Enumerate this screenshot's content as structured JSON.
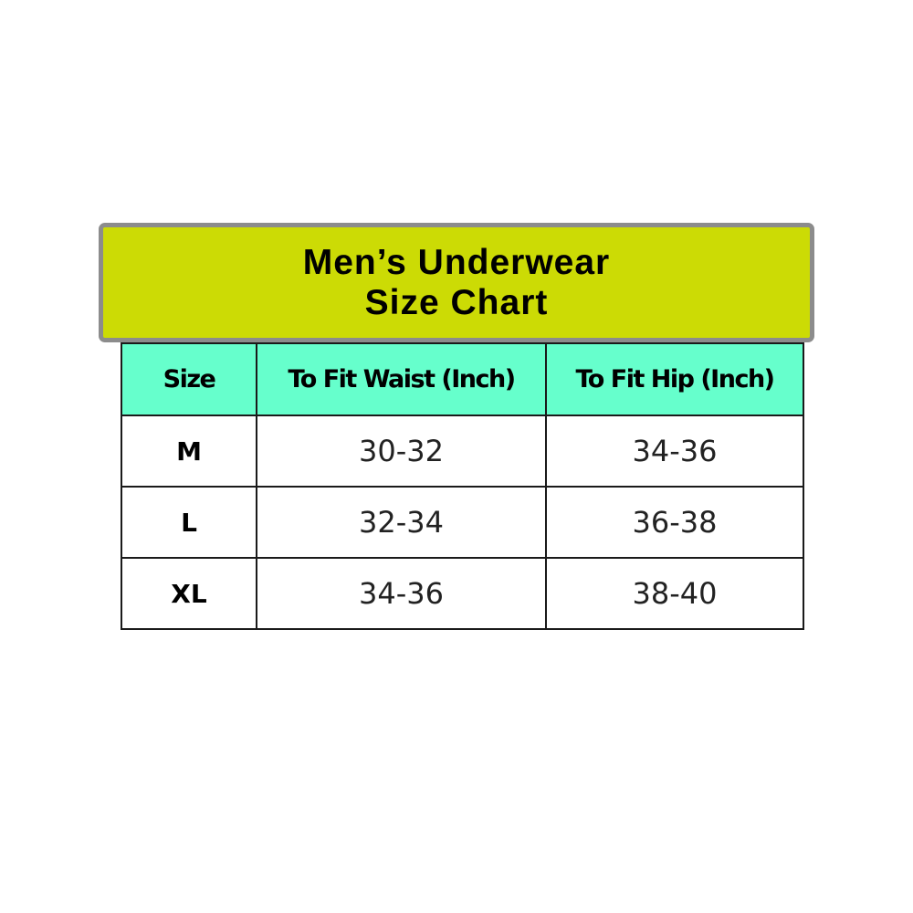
{
  "title": {
    "line1": "Men’s Underwear",
    "line2": "Size Chart"
  },
  "colors": {
    "banner": "#CCDB05",
    "header": "#66FFCC"
  },
  "table": {
    "headers": [
      "Size",
      "To Fit Waist (Inch)",
      "To Fit Hip (Inch)"
    ],
    "rows": [
      [
        "M",
        "30-32",
        "34-36"
      ],
      [
        "L",
        "32-34",
        "36-38"
      ],
      [
        "XL",
        "34-36",
        "38-40"
      ]
    ]
  }
}
